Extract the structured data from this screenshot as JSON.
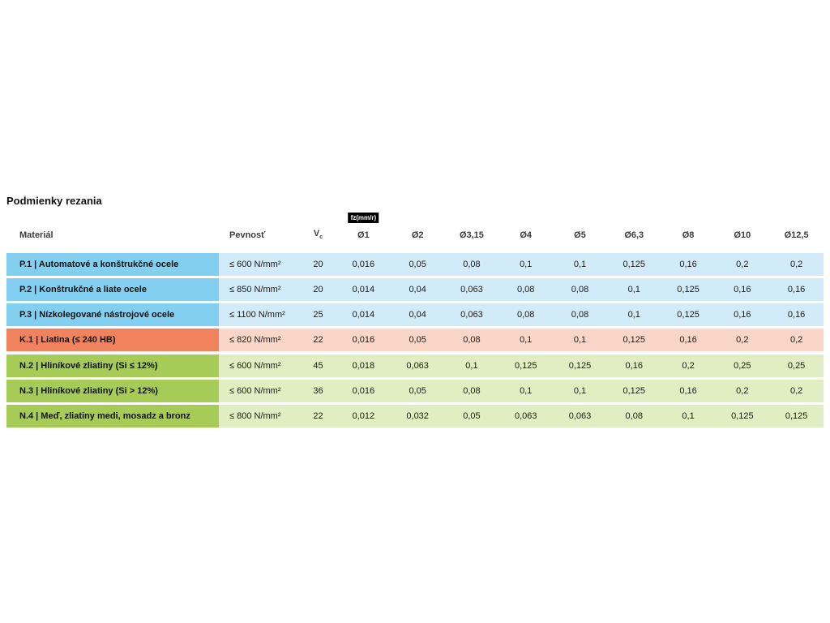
{
  "page": {
    "title": "Podmienky rezania"
  },
  "table": {
    "unit_badge": "fz(mm/r)",
    "headers": {
      "material": "Materiál",
      "strength": "Pevnosť",
      "vc_main": "V",
      "vc_sub": "c",
      "diameters": [
        "Ø1",
        "Ø2",
        "Ø3,15",
        "Ø4",
        "Ø5",
        "Ø6,3",
        "Ø8",
        "Ø10",
        "Ø12,5"
      ]
    },
    "group_colors": {
      "P": {
        "label_bg": "#82cfef",
        "row_bg": "#d2ebf8"
      },
      "K": {
        "label_bg": "#f0835e",
        "row_bg": "#f9d6c7"
      },
      "N": {
        "label_bg": "#a6cc57",
        "row_bg": "#e1eec1"
      }
    },
    "rows": [
      {
        "group": "P",
        "material": "P.1 | Automatové a konštrukčné ocele",
        "strength": "≤ 600 N/mm²",
        "vc": "20",
        "values": [
          "0,016",
          "0,05",
          "0,08",
          "0,1",
          "0,1",
          "0,125",
          "0,16",
          "0,2",
          "0,2"
        ]
      },
      {
        "group": "P",
        "material": "P.2 | Konštrukčné a liate ocele",
        "strength": "≤ 850 N/mm²",
        "vc": "20",
        "values": [
          "0,014",
          "0,04",
          "0,063",
          "0,08",
          "0,08",
          "0,1",
          "0,125",
          "0,16",
          "0,16"
        ]
      },
      {
        "group": "P",
        "material": "P.3 | Nízkolegované nástrojové ocele",
        "strength": "≤ 1100 N/mm²",
        "vc": "25",
        "values": [
          "0,014",
          "0,04",
          "0,063",
          "0,08",
          "0,08",
          "0,1",
          "0,125",
          "0,16",
          "0,16"
        ]
      },
      {
        "group": "K",
        "material": "K.1 | Liatina (≤ 240 HB)",
        "strength": "≤ 820 N/mm²",
        "vc": "22",
        "values": [
          "0,016",
          "0,05",
          "0,08",
          "0,1",
          "0,1",
          "0,125",
          "0,16",
          "0,2",
          "0,2"
        ]
      },
      {
        "group": "N",
        "material": "N.2 | Hliníkové zliatiny (Si ≤ 12%)",
        "strength": "≤ 600 N/mm²",
        "vc": "45",
        "values": [
          "0,018",
          "0,063",
          "0,1",
          "0,125",
          "0,125",
          "0,16",
          "0,2",
          "0,25",
          "0,25"
        ]
      },
      {
        "group": "N",
        "material": "N.3 | Hliníkové zliatiny (Si > 12%)",
        "strength": "≤ 600 N/mm²",
        "vc": "36",
        "values": [
          "0,016",
          "0,05",
          "0,08",
          "0,1",
          "0,1",
          "0,125",
          "0,16",
          "0,2",
          "0,2"
        ]
      },
      {
        "group": "N",
        "material": "N.4 | Meď, zliatiny medi, mosadz a bronz",
        "strength": "≤ 800 N/mm²",
        "vc": "22",
        "values": [
          "0,012",
          "0,032",
          "0,05",
          "0,063",
          "0,063",
          "0,08",
          "0,1",
          "0,125",
          "0,125"
        ]
      }
    ]
  }
}
